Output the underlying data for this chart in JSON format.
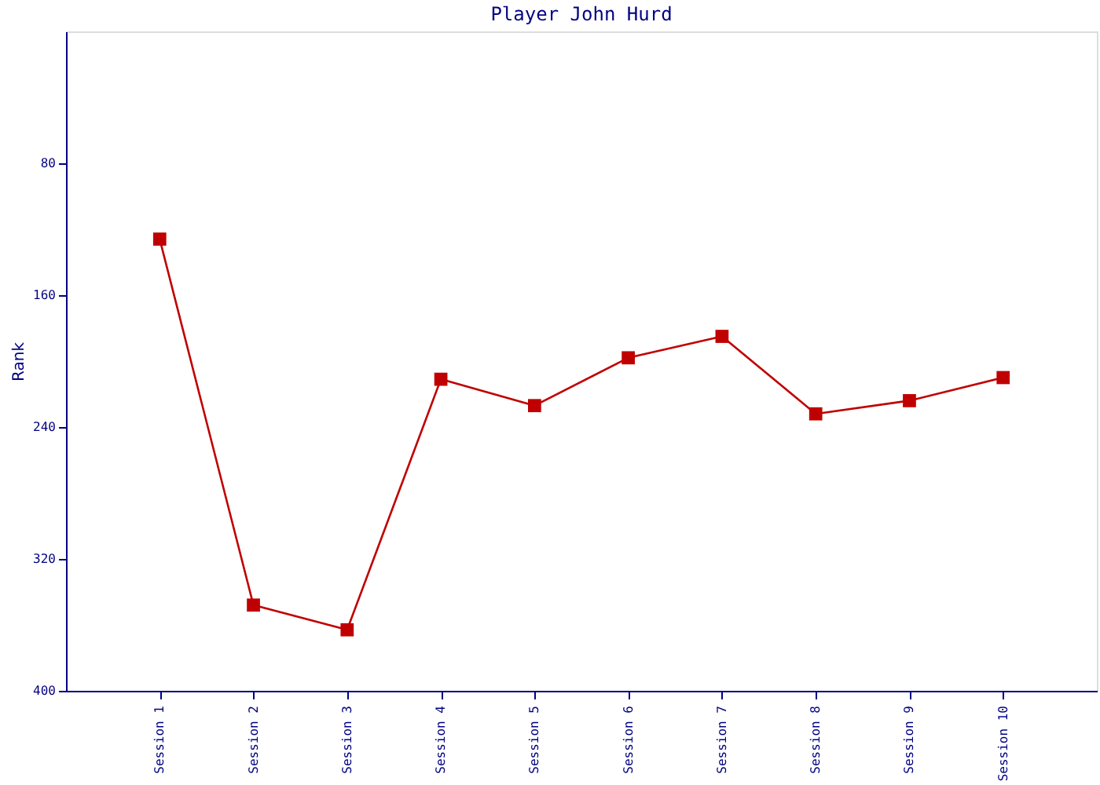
{
  "chart_data": {
    "type": "line",
    "title": "Player John Hurd",
    "ylabel": "Rank",
    "categories": [
      "Session 1",
      "Session 2",
      "Session 3",
      "Session 4",
      "Session 5",
      "Session 6",
      "Session 7",
      "Session 8",
      "Session 9",
      "Session 10"
    ],
    "series": [
      {
        "color": "#c00000",
        "values": [
          126,
          348,
          363,
          211,
          227,
          198,
          185,
          232,
          224,
          210
        ]
      }
    ],
    "ylim": [
      400,
      0
    ],
    "yticks": [
      80,
      160,
      240,
      320,
      400
    ],
    "grid": false,
    "legend": false,
    "marker": "square",
    "line_style": "solid"
  }
}
